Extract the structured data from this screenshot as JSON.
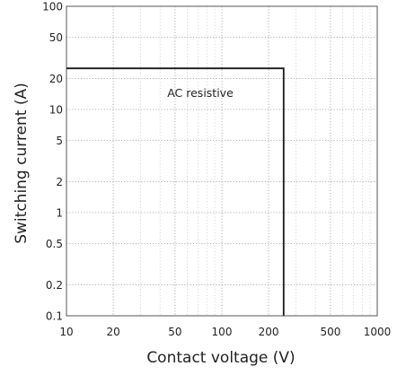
{
  "chart_data": {
    "type": "line",
    "xlabel": "Contact voltage (V)",
    "ylabel": "Switching current (A)",
    "x_scale": "log",
    "y_scale": "log",
    "xlim": [
      10,
      1000
    ],
    "ylim": [
      0.1,
      100
    ],
    "x_ticks": [
      10,
      20,
      50,
      100,
      200,
      500,
      1000
    ],
    "y_ticks": [
      0.1,
      0.2,
      0.5,
      1,
      2,
      5,
      10,
      20,
      50,
      100
    ],
    "x_grid_minor": [
      30,
      40,
      60,
      70,
      80,
      90,
      300,
      400,
      600,
      700,
      800,
      900
    ],
    "grid": "dotted",
    "series": [
      {
        "label": "AC resistive",
        "points": [
          {
            "x": 10,
            "y": 25
          },
          {
            "x": 250,
            "y": 25
          },
          {
            "x": 250,
            "y": 0.1
          }
        ]
      }
    ],
    "colors": {
      "line": "#1a1a1a",
      "grid": "#9a9a9a",
      "frame": "#555555"
    }
  }
}
